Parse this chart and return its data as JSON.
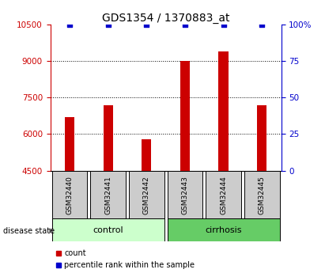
{
  "title": "GDS1354 / 1370883_at",
  "samples": [
    "GSM32440",
    "GSM32441",
    "GSM32442",
    "GSM32443",
    "GSM32444",
    "GSM32445"
  ],
  "counts": [
    6700,
    7200,
    5800,
    9000,
    9400,
    7200
  ],
  "percentile_ranks": [
    100,
    100,
    100,
    100,
    100,
    100
  ],
  "ylim_left": [
    4500,
    10500
  ],
  "ylim_right": [
    0,
    100
  ],
  "yticks_left": [
    4500,
    6000,
    7500,
    9000,
    10500
  ],
  "yticks_right": [
    0,
    25,
    50,
    75,
    100
  ],
  "yticklabels_right": [
    "0",
    "25",
    "50",
    "75",
    "100%"
  ],
  "bar_color": "#cc0000",
  "percentile_color": "#0000cc",
  "group_control_label": "control",
  "group_cirrhosis_label": "cirrhosis",
  "group_control_color": "#ccffcc",
  "group_cirrhosis_color": "#66cc66",
  "sample_box_color": "#cccccc",
  "legend_count_label": "count",
  "legend_percentile_label": "percentile rank within the sample",
  "disease_state_label": "disease state",
  "title_fontsize": 10,
  "tick_fontsize": 7.5,
  "sample_fontsize": 6.5,
  "group_fontsize": 8,
  "legend_fontsize": 7
}
